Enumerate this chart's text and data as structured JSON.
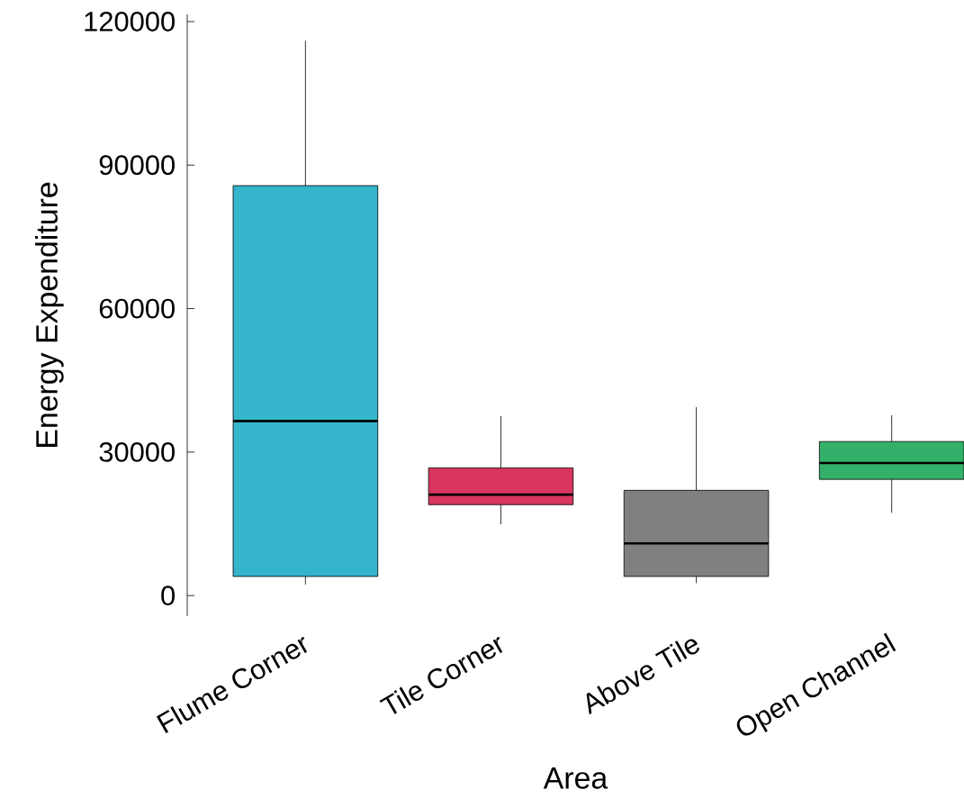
{
  "chart_data": {
    "type": "box",
    "xlabel": "Area",
    "ylabel": "Energy Expenditure",
    "categories": [
      "Flume Corner",
      "Tile Corner",
      "Above Tile",
      "Open Channel"
    ],
    "boxes": [
      {
        "low": 2300,
        "q1": 4000,
        "median": 36500,
        "q3": 85700,
        "high": 116000
      },
      {
        "low": 14900,
        "q1": 19000,
        "median": 21100,
        "q3": 26700,
        "high": 37500
      },
      {
        "low": 2600,
        "q1": 4000,
        "median": 10900,
        "q3": 22000,
        "high": 39400
      },
      {
        "low": 17300,
        "q1": 24300,
        "median": 27700,
        "q3": 32200,
        "high": 37700
      }
    ],
    "colors": [
      "#35b5cc",
      "#d8365e",
      "#808080",
      "#33b06a"
    ],
    "ylim": [
      -4300,
      121500
    ],
    "yticks": [
      0,
      30000,
      60000,
      90000,
      120000
    ]
  }
}
